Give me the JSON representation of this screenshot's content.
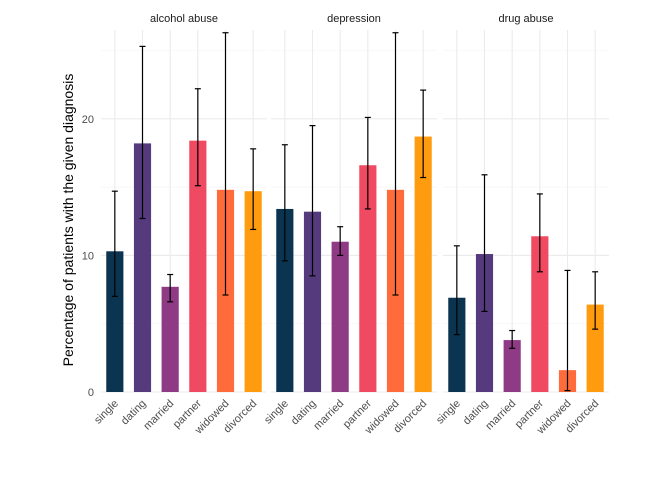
{
  "chart_data": {
    "type": "bar",
    "ylabel": "Percentage of patients with the given diagnosis",
    "xlabel": "",
    "ylim": [
      0,
      26.5
    ],
    "yticks": [
      0,
      10,
      20
    ],
    "categories": [
      "single",
      "dating",
      "married",
      "partner",
      "widowed",
      "divorced"
    ],
    "colors": [
      "#0b3450",
      "#553a7d",
      "#8e3a84",
      "#f04a62",
      "#ff6b3a",
      "#ff9b0f"
    ],
    "panels": [
      {
        "title": "alcohol abuse",
        "values": [
          10.3,
          18.2,
          7.7,
          18.4,
          14.8,
          14.7
        ],
        "error_low": [
          7.0,
          12.7,
          6.6,
          15.1,
          7.1,
          11.9
        ],
        "error_high": [
          14.7,
          25.3,
          8.6,
          22.2,
          26.3,
          17.8
        ]
      },
      {
        "title": "depression",
        "values": [
          13.4,
          13.2,
          11.0,
          16.6,
          14.8,
          18.7
        ],
        "error_low": [
          9.6,
          8.5,
          10.0,
          13.4,
          7.1,
          15.7
        ],
        "error_high": [
          18.1,
          19.5,
          12.1,
          20.1,
          26.3,
          22.1
        ]
      },
      {
        "title": "drug abuse",
        "values": [
          6.9,
          10.1,
          3.8,
          11.4,
          1.6,
          6.4
        ],
        "error_low": [
          4.2,
          5.9,
          3.2,
          8.8,
          0.1,
          4.6
        ],
        "error_high": [
          10.7,
          15.9,
          4.5,
          14.5,
          8.9,
          8.8
        ]
      }
    ]
  }
}
